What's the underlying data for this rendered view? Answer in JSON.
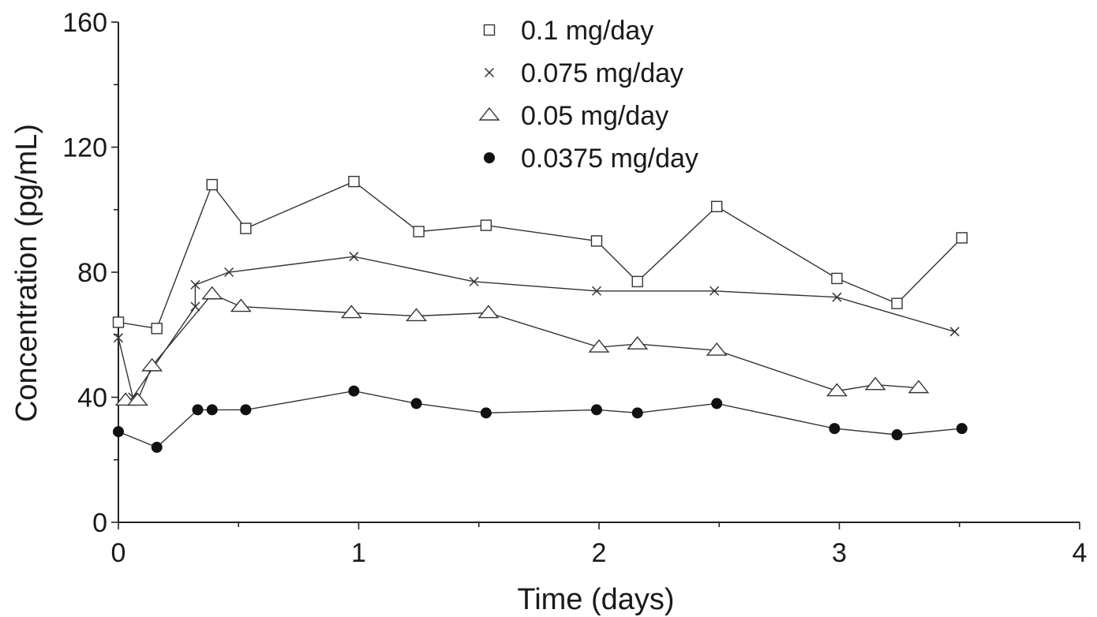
{
  "chart_data": {
    "type": "line",
    "title": "",
    "xlabel": "Time (days)",
    "ylabel": "Concentration (pg/mL)",
    "xlim": [
      0,
      4
    ],
    "ylim": [
      0,
      160
    ],
    "xticks": [
      0,
      1,
      2,
      3,
      4
    ],
    "xtick_labels": [
      "0",
      "1",
      "2",
      "3",
      "4"
    ],
    "yticks": [
      0,
      40,
      80,
      120,
      160
    ],
    "ytick_labels": [
      "0",
      "40",
      "80",
      "120",
      "160"
    ],
    "grid": false,
    "legend_position": "top-center",
    "line_color": "#333333",
    "series": [
      {
        "name": "0.1 mg/day",
        "marker": "square",
        "x": [
          0.0,
          0.16,
          0.39,
          0.53,
          0.98,
          1.25,
          1.53,
          1.99,
          2.16,
          2.49,
          2.99,
          3.24,
          3.51
        ],
        "y": [
          64,
          62,
          108,
          94,
          109,
          93,
          95,
          90,
          77,
          101,
          78,
          70,
          91
        ]
      },
      {
        "name": "0.075 mg/day",
        "marker": "x",
        "x": [
          0.0,
          0.06,
          0.32,
          0.32,
          0.46,
          0.98,
          1.48,
          1.99,
          2.48,
          2.99,
          3.48
        ],
        "y": [
          59,
          40,
          69,
          76,
          80,
          85,
          77,
          74,
          74,
          72,
          61
        ]
      },
      {
        "name": "0.05 mg/day",
        "marker": "triangle",
        "x": [
          0.03,
          0.08,
          0.14,
          0.39,
          0.51,
          0.97,
          1.24,
          1.54,
          2.0,
          2.16,
          2.49,
          2.99,
          3.15,
          3.33
        ],
        "y": [
          39,
          39,
          50,
          73,
          69,
          67,
          66,
          67,
          56,
          57,
          55,
          42,
          44,
          43
        ]
      },
      {
        "name": "0.0375 mg/day",
        "marker": "dot",
        "x": [
          0.0,
          0.16,
          0.33,
          0.39,
          0.53,
          0.98,
          1.24,
          1.53,
          1.99,
          2.16,
          2.49,
          2.98,
          3.24,
          3.51
        ],
        "y": [
          29,
          24,
          36,
          36,
          36,
          42,
          38,
          35,
          36,
          35,
          38,
          30,
          28,
          30
        ]
      }
    ]
  }
}
